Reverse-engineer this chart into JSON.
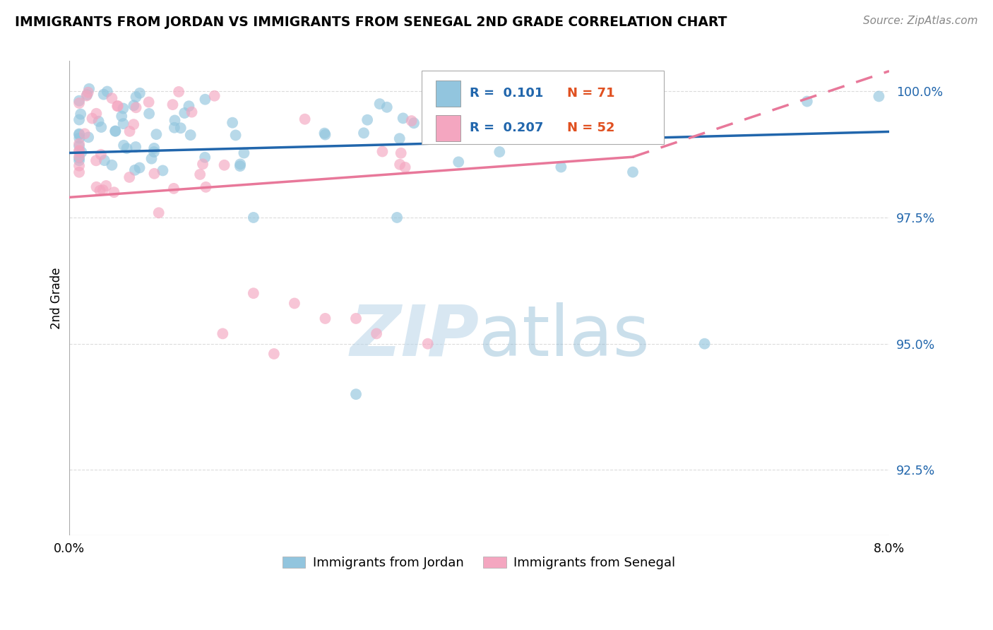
{
  "title": "IMMIGRANTS FROM JORDAN VS IMMIGRANTS FROM SENEGAL 2ND GRADE CORRELATION CHART",
  "source": "Source: ZipAtlas.com",
  "ylabel": "2nd Grade",
  "ytick_vals": [
    0.925,
    0.95,
    0.975,
    1.0
  ],
  "ytick_labels": [
    "92.5%",
    "95.0%",
    "97.5%",
    "100.0%"
  ],
  "xlim": [
    0.0,
    0.08
  ],
  "ylim": [
    0.912,
    1.006
  ],
  "jordan_color": "#92C5DE",
  "senegal_color": "#F4A6C0",
  "jordan_line_color": "#2166AC",
  "senegal_line_color": "#E8789A",
  "jordan_R": "0.101",
  "jordan_N": "71",
  "senegal_R": "0.207",
  "senegal_N": "52",
  "r_color": "#2166AC",
  "n_color": "#E05020",
  "watermark_color": "#C8DCF0",
  "background_color": "#ffffff",
  "grid_color": "#cccccc",
  "jordan_line_x0": 0.0,
  "jordan_line_y0": 0.9878,
  "jordan_line_x1": 0.08,
  "jordan_line_y1": 0.992,
  "senegal_line_x0": 0.0,
  "senegal_line_y0": 0.979,
  "senegal_line_solid_x1": 0.055,
  "senegal_line_solid_y1": 0.987,
  "senegal_line_x1": 0.08,
  "senegal_line_y1": 1.004
}
